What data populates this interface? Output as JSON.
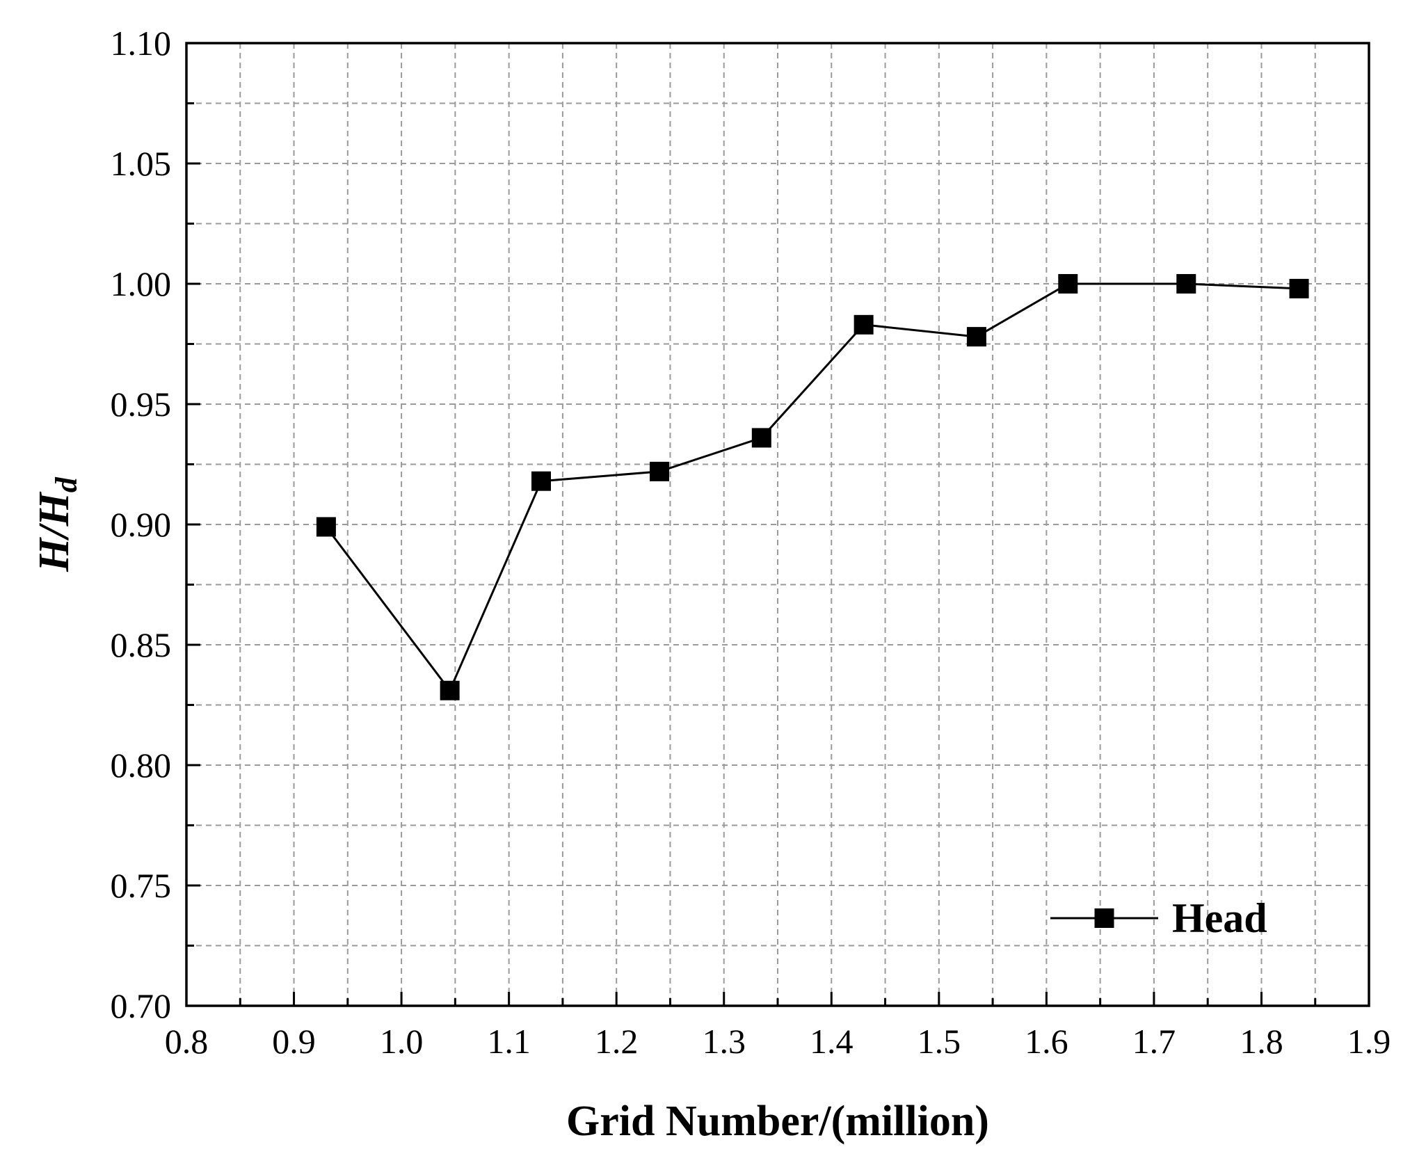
{
  "chart_data": {
    "type": "line",
    "title": "",
    "xlabel": "Grid Number/(million)",
    "ylabel_main": "H/H",
    "ylabel_sub": "d",
    "xlim": [
      0.8,
      1.9
    ],
    "ylim": [
      0.7,
      1.1
    ],
    "x_ticks": [
      0.8,
      0.9,
      1.0,
      1.1,
      1.2,
      1.3,
      1.4,
      1.5,
      1.6,
      1.7,
      1.8,
      1.9
    ],
    "x_tick_labels": [
      "0.8",
      "0.9",
      "1.0",
      "1.1",
      "1.2",
      "1.3",
      "1.4",
      "1.5",
      "1.6",
      "1.7",
      "1.8",
      "1.9"
    ],
    "y_ticks": [
      0.7,
      0.75,
      0.8,
      0.85,
      0.9,
      0.95,
      1.0,
      1.05,
      1.1
    ],
    "y_tick_labels": [
      "0.70",
      "0.75",
      "0.80",
      "0.85",
      "0.90",
      "0.95",
      "1.00",
      "1.05",
      "1.10"
    ],
    "grid": true,
    "legend_position": "bottom-right",
    "series": [
      {
        "name": "Head",
        "marker": "square",
        "color": "#000000",
        "x": [
          0.93,
          1.045,
          1.13,
          1.24,
          1.335,
          1.43,
          1.535,
          1.62,
          1.73,
          1.835
        ],
        "y": [
          0.899,
          0.831,
          0.918,
          0.922,
          0.936,
          0.983,
          0.978,
          1.0,
          1.0,
          0.998
        ]
      }
    ]
  }
}
